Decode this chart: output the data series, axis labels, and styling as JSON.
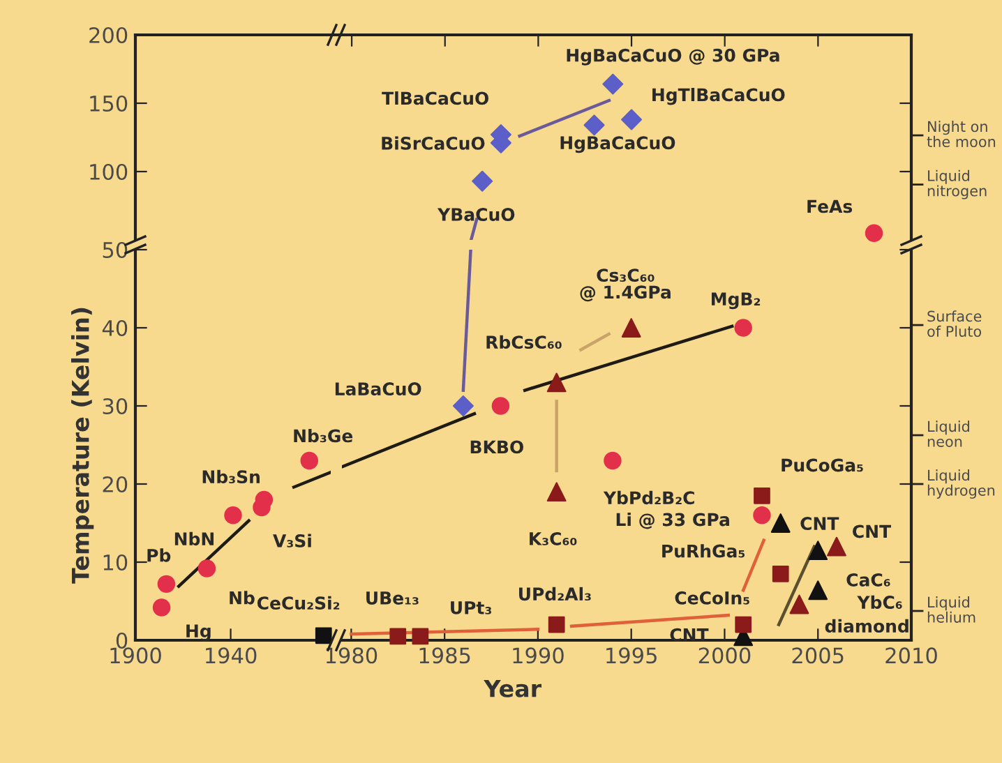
{
  "chart_data": [
    {
      "type": "scatter",
      "xlim": [
        1968.4,
        2010
      ],
      "ylim": [
        50,
        200
      ],
      "xticks": [
        1980,
        1985,
        1990,
        1995,
        2000,
        2005,
        2010
      ],
      "yticks": [
        100,
        150,
        200
      ],
      "tick_labels": "y",
      "grid": false,
      "series": [
        {
          "type": "line",
          "color": "#6a5a9a",
          "x": [
            1986.4,
            1986.7
          ],
          "values": [
            50,
            65
          ]
        },
        {
          "type": "line",
          "color": "#6a5a9a",
          "x": [
            1989.0,
            1993.8
          ],
          "values": [
            126,
            152
          ]
        },
        {
          "marker": "circle",
          "color": "#e3304a",
          "x": [
            2008
          ],
          "values": [
            55
          ]
        },
        {
          "marker": "diamond",
          "color": "#5b5fc7",
          "x": [
            1987,
            1988,
            1988,
            1993,
            1995,
            1994
          ],
          "values": [
            93,
            121,
            127,
            134,
            138,
            164
          ]
        }
      ],
      "annotations": [
        {
          "text": "FeAs",
          "x": 2008,
          "y": 55
        },
        {
          "text": "HgBaCaCuO @ 30 GPa",
          "x": 1994,
          "y": 164
        },
        {
          "text": "HgTlBaCaCuO",
          "x": 1995,
          "y": 138
        },
        {
          "text": "HgBaCaCuO",
          "x": 1993,
          "y": 134
        },
        {
          "text": "TlBaCaCuO",
          "x": 1988,
          "y": 127
        },
        {
          "text": "BiSrCaCuO",
          "x": 1988,
          "y": 121
        },
        {
          "text": "YBaCuO",
          "x": 1987,
          "y": 93
        },
        "Night on\nthe moon",
        "Liquid\nnitrogen"
      ]
    },
    {
      "type": "scatter",
      "xlim": [
        1900,
        1982
      ],
      "ylim": [
        0,
        50
      ],
      "xticks": [
        1900,
        1940
      ],
      "yticks": [
        0,
        10,
        20,
        30,
        40,
        50
      ],
      "grid": false,
      "ylabel": "Temperature (Kelvin)",
      "series": [
        {
          "type": "line",
          "color": "#1e1a14",
          "x": [
            1918.2,
            1947.6
          ],
          "values": [
            6.9,
            15.3
          ]
        },
        {
          "type": "line",
          "color": "#1e1a14",
          "x": [
            1966.5,
            1982
          ],
          "values": [
            19.6,
            21.5
          ]
        },
        {
          "marker": "circle",
          "color": "#e3304a",
          "x": [
            1911,
            1913,
            1930,
            1941,
            1953,
            1954,
            1973
          ],
          "values": [
            4.2,
            7.2,
            9.2,
            16,
            17,
            18,
            23
          ]
        },
        {
          "marker": "square",
          "color": "#111111",
          "x": [
            1979
          ],
          "values": [
            0.6
          ]
        }
      ],
      "annotations": [
        {
          "text": "Hg",
          "x": 1911,
          "y": 4.2
        },
        {
          "text": "Pb",
          "x": 1913,
          "y": 7.2
        },
        {
          "text": "Nb",
          "x": 1930,
          "y": 9.2
        },
        {
          "text": "NbN",
          "x": 1941,
          "y": 16
        },
        {
          "text": "V₃Si",
          "x": 1953,
          "y": 17
        },
        {
          "text": "Nb₃Sn",
          "x": 1954,
          "y": 18
        },
        {
          "text": "Nb₃Ge",
          "x": 1973,
          "y": 23
        },
        {
          "text": "CeCu₂Si₂",
          "x": 1979,
          "y": 0.6
        }
      ]
    },
    {
      "type": "scatter",
      "xlim": [
        1979.5,
        2010
      ],
      "ylim": [
        0,
        50
      ],
      "xticks": [
        1980,
        1985,
        1990,
        1995,
        2000,
        2005,
        2010
      ],
      "yticks": [
        0,
        10,
        20,
        30,
        40,
        50
      ],
      "tick_labels": "x",
      "grid": false,
      "xlabel": "Year",
      "series": [
        {
          "type": "line",
          "color": "#1e1a14",
          "x": [
            1979.5,
            1986.6
          ],
          "values": [
            22.2,
            29.0
          ]
        },
        {
          "type": "line",
          "color": "#1e1a14",
          "x": [
            1989.3,
            2000.4
          ],
          "values": [
            32.0,
            40.2
          ]
        },
        {
          "type": "line",
          "color": "#6a5a9a",
          "x": [
            1986.0,
            1986.4
          ],
          "values": [
            32,
            50
          ]
        },
        {
          "type": "line",
          "color": "#c9a36a",
          "x": [
            1991,
            1991
          ],
          "values": [
            30.6,
            21.7
          ]
        },
        {
          "type": "line",
          "color": "#c9a36a",
          "x": [
            1992.3,
            1993.8
          ],
          "values": [
            37.2,
            39.2
          ]
        },
        {
          "type": "line",
          "color": "#e0603a",
          "x": [
            1980,
            1990
          ],
          "values": [
            0.8,
            1.4
          ]
        },
        {
          "type": "line",
          "color": "#e0603a",
          "x": [
            1991.8,
            2000.2
          ],
          "values": [
            1.8,
            3.2
          ]
        },
        {
          "type": "line",
          "color": "#e0603a",
          "x": [
            2001,
            2002.1
          ],
          "values": [
            6.4,
            12.8
          ]
        },
        {
          "type": "line",
          "color": "#5a5030",
          "x": [
            2002.9,
            2004.8
          ],
          "values": [
            2.0,
            12.0
          ]
        },
        {
          "marker": "circle",
          "color": "#e3304a",
          "x": [
            1988,
            1994,
            2001,
            2002
          ],
          "values": [
            30,
            23,
            40,
            16
          ]
        },
        {
          "marker": "diamond",
          "color": "#5b5fc7",
          "x": [
            1986
          ],
          "values": [
            30
          ]
        },
        {
          "marker": "triangle",
          "colors": [
            "#8b1a1a",
            "#8b1a1a",
            "#8b1a1a",
            "#111111",
            "#111111",
            "#111111",
            "#111111",
            "#8b1a1a",
            "#8b1a1a"
          ],
          "x": [
            1991,
            1991,
            1995,
            2001,
            2003,
            2005,
            2005,
            2004,
            2006
          ],
          "values": [
            19,
            33,
            40,
            0.5,
            15,
            11.5,
            6.4,
            4.6,
            12
          ]
        },
        {
          "marker": "square",
          "color": "#8b1a1a",
          "x": [
            1982.5,
            1983.7,
            1991,
            2001,
            2003,
            2002
          ],
          "values": [
            0.5,
            0.5,
            2,
            2,
            8.5,
            18.5
          ]
        }
      ],
      "annotations": [
        {
          "text": "LaBaCuO",
          "x": 1986,
          "y": 30
        },
        {
          "text": "BKBO",
          "x": 1988,
          "y": 30
        },
        {
          "text": "RbCsC₆₀",
          "x": 1991,
          "y": 33
        },
        {
          "text": "K₃C₆₀",
          "x": 1991,
          "y": 19
        },
        {
          "text": "YbPd₂B₂C",
          "x": 1994,
          "y": 23
        },
        {
          "text": "PuCoGa₅",
          "x": 2002,
          "y": 18.5
        },
        {
          "text": "Li @ 33 GPa",
          "x": 2002,
          "y": 16
        },
        {
          "text": "CNT",
          "x": 2003,
          "y": 15
        },
        {
          "text": "CNT",
          "x": 2006,
          "y": 12
        },
        {
          "text": "PuRhGa₅",
          "x": 2003,
          "y": 8.5
        },
        {
          "text": "CaC₆",
          "x": 2005,
          "y": 11.5
        },
        {
          "text": "YbC₆",
          "x": 2005,
          "y": 6.4
        },
        {
          "text": "diamond",
          "x": 2004,
          "y": 4.6
        },
        {
          "text": "CeCoIn₅",
          "x": 2001,
          "y": 2
        },
        {
          "text": "CNT",
          "x": 2001,
          "y": 0.5
        },
        {
          "text": "UPd₂Al₃",
          "x": 1991,
          "y": 2
        },
        {
          "text": "UPt₃",
          "x": 1983.7,
          "y": 0.5
        },
        {
          "text": "UBe₁₃",
          "x": 1982.5,
          "y": 0.5
        },
        {
          "text": "MgB₂",
          "x": 2001,
          "y": 40
        },
        {
          "text": "Cs₃C₆₀\n@ 1.4GPa",
          "x": 1995,
          "y": 40
        },
        "Surface\nof Pluto",
        "Liquid\nneon",
        "Liquid\nhydrogen",
        "Liquid\nhelium"
      ]
    }
  ]
}
